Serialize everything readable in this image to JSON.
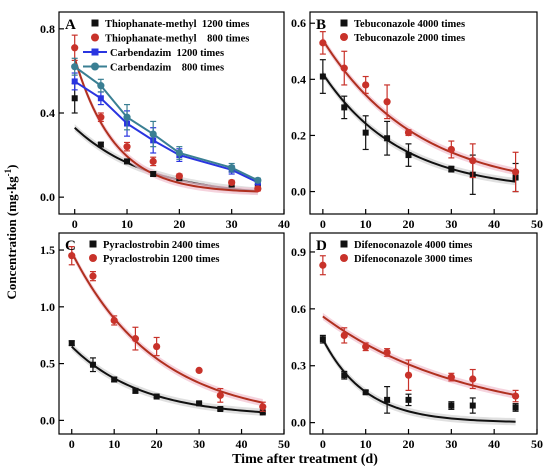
{
  "figure": {
    "ylabel": "Concentration (mg·kg",
    "ylabel_sup": "-1",
    "ylabel_close": ")",
    "xlabel": "Time after treatment (d)"
  },
  "colors": {
    "black": "#111111",
    "red": "#c8322a",
    "red_curve": "#b0301f",
    "red_band": "#f2c4d2",
    "blue": "#2a35e0",
    "teal": "#3a7f93",
    "gray_band": "#d6d6d6"
  },
  "chart_data": [
    {
      "type": "scatter",
      "panel": "A",
      "xlim": [
        -3,
        40
      ],
      "ylim": [
        -0.08,
        0.88
      ],
      "xticks": [
        0,
        10,
        20,
        30,
        40
      ],
      "yticks": [
        0.0,
        0.4,
        0.8
      ],
      "ytick_labels": [
        "0.0",
        "0.4",
        "0.8"
      ],
      "legend_position": "top-left",
      "series": [
        {
          "name": "Thiophanate-methyl  1200 times",
          "color": "#111111",
          "marker": "square",
          "style": "fit",
          "x": [
            0,
            5,
            10,
            15,
            20,
            30,
            35
          ],
          "y": [
            0.47,
            0.25,
            0.17,
            0.11,
            0.09,
            0.06,
            0.05
          ],
          "err": [
            0.07,
            0.01,
            0.01,
            0.01,
            0.01,
            0.01,
            0.01
          ],
          "fit": {
            "a": 0.33,
            "k": 0.07,
            "b": 0.0,
            "x0": 0,
            "x1": 35
          }
        },
        {
          "name": "Thiophanate-methyl    800 times",
          "color": "#c8322a",
          "marker": "circle",
          "style": "fit",
          "x": [
            0,
            5,
            10,
            15,
            20,
            30,
            35
          ],
          "y": [
            0.71,
            0.38,
            0.24,
            0.17,
            0.1,
            0.07,
            0.04
          ],
          "err": [
            0.06,
            0.02,
            0.02,
            0.02,
            0.01,
            0.01,
            0.01
          ],
          "fit": {
            "a": 0.64,
            "k": 0.13,
            "b": 0.02,
            "x0": 0,
            "x1": 35
          }
        },
        {
          "name": "Carbendazim  1200 times",
          "color": "#2a35e0",
          "marker": "square",
          "style": "line",
          "x": [
            0,
            5,
            10,
            15,
            20,
            30,
            35
          ],
          "y": [
            0.55,
            0.47,
            0.35,
            0.27,
            0.2,
            0.13,
            0.07
          ],
          "err": [
            0.04,
            0.03,
            0.06,
            0.06,
            0.03,
            0.02,
            0.01
          ]
        },
        {
          "name": "Carbendazim    800 times",
          "color": "#3a7f93",
          "marker": "circle",
          "style": "line",
          "x": [
            0,
            5,
            10,
            15,
            20,
            30,
            35
          ],
          "y": [
            0.62,
            0.53,
            0.38,
            0.3,
            0.21,
            0.14,
            0.08
          ],
          "err": [
            0.04,
            0.03,
            0.06,
            0.06,
            0.03,
            0.02,
            0.01
          ]
        }
      ]
    },
    {
      "type": "scatter",
      "panel": "B",
      "xlim": [
        -3,
        50
      ],
      "ylim": [
        -0.08,
        0.64
      ],
      "xticks": [
        0,
        10,
        20,
        30,
        40,
        50
      ],
      "yticks": [
        0.0,
        0.2,
        0.4,
        0.6
      ],
      "ytick_labels": [
        "0.0",
        "0.2",
        "0.4",
        "0.6"
      ],
      "legend_position": "top-left",
      "series": [
        {
          "name": "Tebuconazole 4000 times",
          "color": "#111111",
          "marker": "square",
          "style": "fit",
          "x": [
            0,
            5,
            10,
            15,
            20,
            30,
            35,
            45
          ],
          "y": [
            0.41,
            0.3,
            0.21,
            0.19,
            0.13,
            0.08,
            0.06,
            0.05
          ],
          "err": [
            0.06,
            0.04,
            0.06,
            0.06,
            0.04,
            0.01,
            0.07,
            0.05
          ],
          "fit": {
            "a": 0.42,
            "k": 0.055,
            "b": 0.0,
            "x0": 0,
            "x1": 45
          }
        },
        {
          "name": "Tebuconazole 2000 times",
          "color": "#c8322a",
          "marker": "circle",
          "style": "fit",
          "x": [
            0,
            5,
            10,
            15,
            20,
            30,
            35,
            45
          ],
          "y": [
            0.53,
            0.44,
            0.38,
            0.32,
            0.21,
            0.15,
            0.11,
            0.07
          ],
          "err": [
            0.04,
            0.06,
            0.03,
            0.06,
            0.01,
            0.03,
            0.06,
            0.07
          ],
          "fit": {
            "a": 0.54,
            "k": 0.045,
            "b": 0.0,
            "x0": 0,
            "x1": 45
          }
        }
      ]
    },
    {
      "type": "scatter",
      "panel": "C",
      "xlim": [
        -3,
        50
      ],
      "ylim": [
        -0.12,
        1.65
      ],
      "xticks": [
        0,
        10,
        20,
        30,
        40,
        50
      ],
      "yticks": [
        0.0,
        0.5,
        1.0,
        1.5
      ],
      "ytick_labels": [
        "0.0",
        "0.5",
        "1.0",
        "1.5"
      ],
      "legend_position": "top-left",
      "series": [
        {
          "name": "Pyraclostrobin 2400 times",
          "color": "#111111",
          "marker": "square",
          "style": "fit",
          "x": [
            0,
            5,
            10,
            15,
            20,
            30,
            35,
            45
          ],
          "y": [
            0.68,
            0.49,
            0.36,
            0.26,
            0.21,
            0.15,
            0.1,
            0.07
          ],
          "err": [
            0.02,
            0.06,
            0.02,
            0.02,
            0.01,
            0.01,
            0.01,
            0.01
          ],
          "fit": {
            "a": 0.62,
            "k": 0.06,
            "b": 0.03,
            "x0": 0,
            "x1": 45
          }
        },
        {
          "name": "Pyraclostrobin 1200 times",
          "color": "#c8322a",
          "marker": "circle",
          "style": "fit",
          "x": [
            0,
            5,
            10,
            15,
            20,
            30,
            35,
            45
          ],
          "y": [
            1.45,
            1.27,
            0.88,
            0.72,
            0.65,
            0.44,
            0.22,
            0.12
          ],
          "err": [
            0.08,
            0.04,
            0.04,
            0.1,
            0.08,
            0.01,
            0.06,
            0.04
          ],
          "fit": {
            "a": 1.48,
            "k": 0.05,
            "b": 0.0,
            "x0": 0,
            "x1": 45
          }
        }
      ]
    },
    {
      "type": "scatter",
      "panel": "D",
      "xlim": [
        -3,
        50
      ],
      "ylim": [
        -0.06,
        1.0
      ],
      "xticks": [
        0,
        10,
        20,
        30,
        40,
        50
      ],
      "yticks": [
        0.0,
        0.3,
        0.6,
        0.9
      ],
      "ytick_labels": [
        "0.0",
        "0.3",
        "0.6",
        "0.9"
      ],
      "legend_position": "top-left",
      "series": [
        {
          "name": "Difenoconazole 4000 times",
          "color": "#111111",
          "marker": "square",
          "style": "fit",
          "x": [
            0,
            5,
            10,
            15,
            20,
            30,
            35,
            45
          ],
          "y": [
            0.44,
            0.25,
            0.16,
            0.12,
            0.12,
            0.09,
            0.09,
            0.08
          ],
          "err": [
            0.02,
            0.02,
            0.01,
            0.07,
            0.03,
            0.02,
            0.04,
            0.02
          ],
          "fit": {
            "a": 0.44,
            "k": 0.1,
            "b": 0.0,
            "x0": 0,
            "x1": 45
          }
        },
        {
          "name": "Difenoconazole 3000 times",
          "color": "#c8322a",
          "marker": "circle",
          "style": "fit",
          "x": [
            0,
            5,
            10,
            15,
            20,
            30,
            35,
            45
          ],
          "y": [
            0.83,
            0.46,
            0.4,
            0.37,
            0.25,
            0.24,
            0.23,
            0.14
          ],
          "err": [
            0.05,
            0.04,
            0.02,
            0.02,
            0.08,
            0.02,
            0.05,
            0.03
          ],
          "fit": {
            "a": 0.56,
            "k": 0.03,
            "b": 0.0,
            "x0": 0,
            "x1": 45
          }
        }
      ]
    }
  ]
}
